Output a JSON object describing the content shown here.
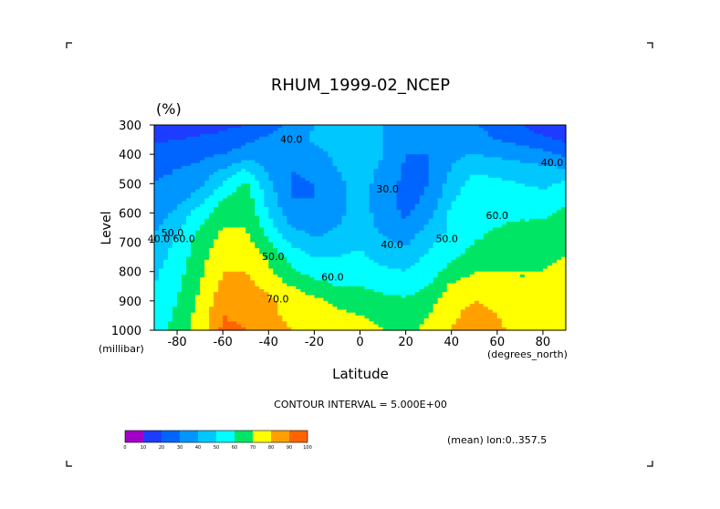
{
  "chart_data": {
    "type": "heatmap",
    "title": "RHUM_1999-02_NCEP",
    "units": "(%)",
    "xlabel": "Latitude",
    "ylabel": "Level",
    "x_unit_label": "(degrees_north)",
    "y_unit_label": "(millibar)",
    "xlim": [
      -90,
      90
    ],
    "ylim": [
      1000,
      300
    ],
    "xticks": [
      "-80",
      "-60",
      "-40",
      "-20",
      "0",
      "20",
      "40",
      "60",
      "80"
    ],
    "xtick_values": [
      -80,
      -60,
      -40,
      -20,
      0,
      20,
      40,
      60,
      80
    ],
    "yticks": [
      "300",
      "400",
      "500",
      "600",
      "700",
      "800",
      "900",
      "1000"
    ],
    "ytick_values": [
      300,
      400,
      500,
      600,
      700,
      800,
      900,
      1000
    ],
    "contour_interval_text": "CONTOUR INTERVAL = 5.000E+00",
    "mean_text": "(mean) lon:0..357.5",
    "contour_labels": [
      {
        "text": "40.0",
        "lat": -88,
        "lev": 700
      },
      {
        "text": "50.0",
        "lat": -82,
        "lev": 680
      },
      {
        "text": "60.0",
        "lat": -77,
        "lev": 700
      },
      {
        "text": "40.0",
        "lat": -30,
        "lev": 360
      },
      {
        "text": "50.0",
        "lat": -38,
        "lev": 760
      },
      {
        "text": "60.0",
        "lat": -12,
        "lev": 830
      },
      {
        "text": "70.0",
        "lat": -36,
        "lev": 905
      },
      {
        "text": "30.0",
        "lat": 12,
        "lev": 530
      },
      {
        "text": "40.0",
        "lat": 14,
        "lev": 720
      },
      {
        "text": "50.0",
        "lat": 38,
        "lev": 700
      },
      {
        "text": "60.0",
        "lat": 60,
        "lev": 620
      },
      {
        "text": "40.0",
        "lat": 84,
        "lev": 440
      }
    ],
    "levels": [
      300,
      350,
      400,
      450,
      500,
      550,
      600,
      650,
      700,
      750,
      800,
      850,
      900,
      950,
      1000
    ],
    "latitudes": [
      -90,
      -80,
      -70,
      -60,
      -50,
      -40,
      -30,
      -20,
      -10,
      0,
      10,
      20,
      30,
      40,
      50,
      60,
      70,
      80,
      90
    ],
    "values": [
      [
        12,
        14,
        15,
        17,
        20,
        25,
        32,
        40,
        45,
        48,
        40,
        32,
        35,
        38,
        32,
        24,
        20,
        15,
        12
      ],
      [
        18,
        20,
        22,
        24,
        28,
        32,
        36,
        42,
        46,
        47,
        40,
        34,
        34,
        38,
        34,
        30,
        26,
        22,
        18
      ],
      [
        24,
        26,
        28,
        30,
        34,
        36,
        34,
        36,
        43,
        46,
        40,
        30,
        30,
        38,
        40,
        38,
        36,
        34,
        28
      ],
      [
        28,
        30,
        32,
        40,
        50,
        38,
        30,
        32,
        40,
        45,
        38,
        28,
        30,
        40,
        48,
        46,
        44,
        42,
        40
      ],
      [
        30,
        32,
        38,
        50,
        62,
        42,
        29,
        30,
        38,
        44,
        36,
        27,
        30,
        44,
        55,
        52,
        50,
        48,
        52
      ],
      [
        32,
        36,
        45,
        60,
        66,
        46,
        30,
        30,
        37,
        43,
        35,
        26,
        32,
        48,
        58,
        56,
        55,
        53,
        58
      ],
      [
        35,
        42,
        55,
        66,
        68,
        50,
        33,
        32,
        38,
        44,
        36,
        28,
        36,
        52,
        58,
        58,
        58,
        58,
        62
      ],
      [
        38,
        48,
        60,
        70,
        70,
        55,
        40,
        36,
        40,
        45,
        38,
        32,
        42,
        52,
        58,
        60,
        62,
        62,
        65
      ],
      [
        42,
        52,
        64,
        74,
        74,
        62,
        48,
        42,
        44,
        48,
        42,
        38,
        48,
        54,
        60,
        62,
        64,
        65,
        68
      ],
      [
        45,
        54,
        66,
        78,
        78,
        68,
        56,
        50,
        50,
        52,
        46,
        44,
        52,
        58,
        64,
        66,
        68,
        68,
        70
      ],
      [
        48,
        56,
        68,
        80,
        80,
        72,
        62,
        56,
        55,
        56,
        52,
        50,
        56,
        64,
        70,
        70,
        70,
        70,
        72
      ],
      [
        50,
        58,
        70,
        82,
        83,
        77,
        70,
        64,
        60,
        60,
        56,
        54,
        60,
        72,
        74,
        72,
        70,
        70,
        72
      ],
      [
        52,
        60,
        72,
        86,
        86,
        82,
        76,
        72,
        68,
        66,
        64,
        62,
        66,
        76,
        80,
        76,
        72,
        70,
        72
      ],
      [
        54,
        62,
        74,
        90,
        88,
        82,
        78,
        75,
        72,
        70,
        68,
        66,
        70,
        78,
        84,
        80,
        74,
        72,
        72
      ],
      [
        55,
        63,
        75,
        92,
        90,
        84,
        80,
        76,
        74,
        72,
        70,
        68,
        72,
        80,
        86,
        82,
        76,
        74,
        74
      ]
    ],
    "colorbar": {
      "bounds": [
        "0",
        "10",
        "20",
        "30",
        "40",
        "50",
        "60",
        "70",
        "80",
        "90",
        "100"
      ],
      "colors": [
        "#a000c8",
        "#1e3cff",
        "#0064ff",
        "#0096ff",
        "#00c8ff",
        "#00ffff",
        "#00e664",
        "#ffff00",
        "#ffa000",
        "#ff6400",
        "#ff0000"
      ]
    }
  }
}
